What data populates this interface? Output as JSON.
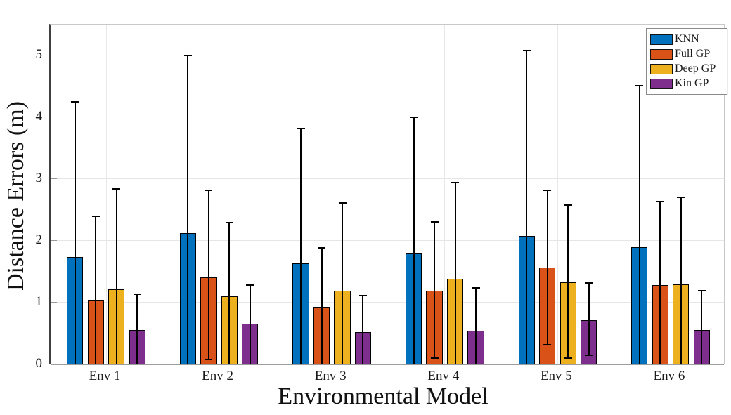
{
  "chart_data": {
    "type": "bar",
    "title": "",
    "xlabel": "Environmental Model",
    "ylabel": "Distance Errors (m)",
    "categories": [
      "Env 1",
      "Env 2",
      "Env 3",
      "Env 4",
      "Env 5",
      "Env 6"
    ],
    "yticks": [
      0,
      1,
      2,
      3,
      4,
      5
    ],
    "ylim": [
      0,
      5.5
    ],
    "grid": true,
    "legend_position": "top-right",
    "legend_labels": [
      "KNN",
      "Full GP",
      "Deep GP",
      "Kin GP"
    ],
    "series": [
      {
        "name": "KNN",
        "color": "#0072BD",
        "values": [
          1.74,
          2.12,
          1.64,
          1.79,
          2.08,
          1.89
        ],
        "err_high": [
          4.24,
          5.0,
          3.81,
          4.0,
          5.07,
          4.51
        ],
        "err_low": [
          null,
          null,
          null,
          null,
          null,
          null
        ]
      },
      {
        "name": "Full GP",
        "color": "#D95319",
        "values": [
          1.04,
          1.41,
          0.93,
          1.19,
          1.57,
          1.28
        ],
        "err_high": [
          2.4,
          2.82,
          1.88,
          2.3,
          2.82,
          2.63
        ],
        "err_low": [
          null,
          0.08,
          null,
          0.1,
          0.32,
          null
        ]
      },
      {
        "name": "Deep GP",
        "color": "#EDB120",
        "values": [
          1.22,
          1.1,
          1.19,
          1.38,
          1.33,
          1.29
        ],
        "err_high": [
          2.84,
          2.29,
          2.61,
          2.94,
          2.58,
          2.7
        ],
        "err_low": [
          null,
          null,
          null,
          null,
          0.1,
          null
        ]
      },
      {
        "name": "Kin GP",
        "color": "#7E2F8E",
        "values": [
          0.56,
          0.66,
          0.52,
          0.54,
          0.72,
          0.56
        ],
        "err_high": [
          1.14,
          1.28,
          1.11,
          1.24,
          1.32,
          1.19
        ],
        "err_low": [
          null,
          null,
          null,
          null,
          0.15,
          null
        ]
      }
    ],
    "error_bar_color": "#000000",
    "bar_edge_color": "#000000"
  },
  "axes": {
    "background": "#ffffff",
    "grid_color": "#e6e6e6",
    "axis_color": "#404040",
    "baseline_color": "#9d9d9d",
    "text_color": "#1a1a1a"
  }
}
